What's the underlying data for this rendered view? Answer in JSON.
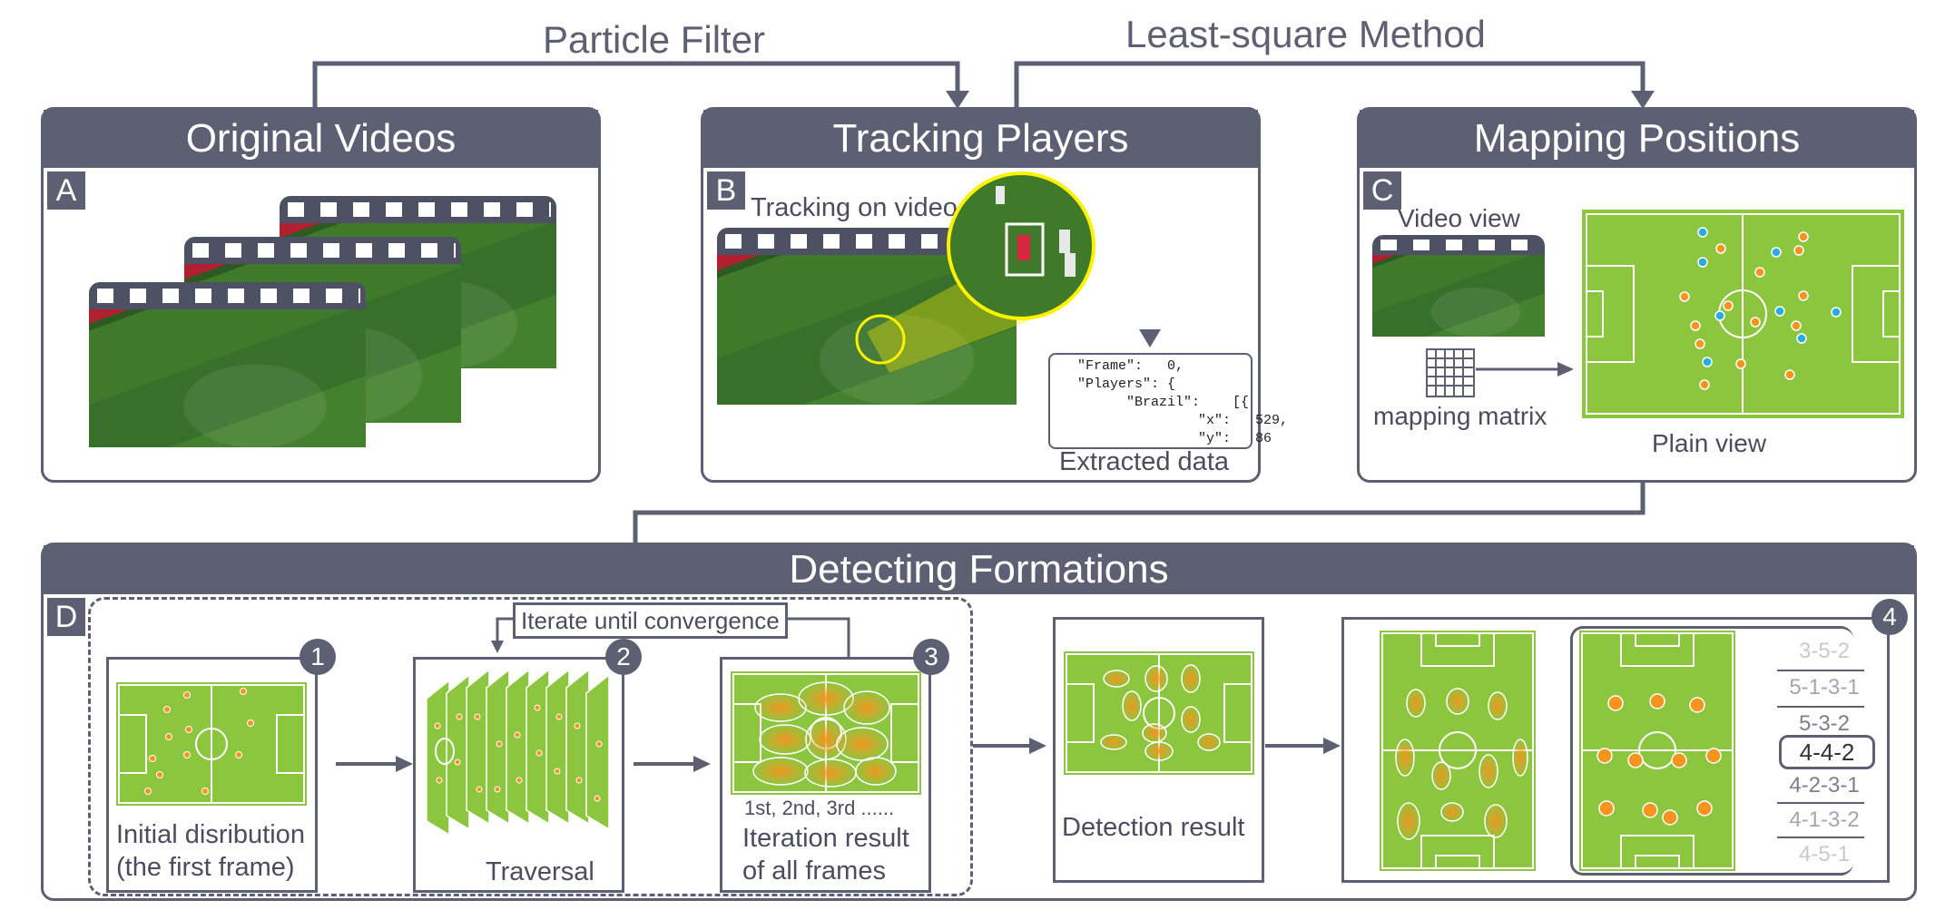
{
  "flow": {
    "particle_filter": "Particle Filter",
    "least_square": "Least-square Method"
  },
  "panels": {
    "a": {
      "title": "Original Videos",
      "tag": "A"
    },
    "b": {
      "title": "Tracking Players",
      "tag": "B",
      "tracking_label": "Tracking on video",
      "extracted_label": "Extracted data",
      "json_lines": [
        "\"Frame\":   0,",
        "\"Players\": {",
        "      \"Brazil\":    [{",
        "                 \"x\":   529,",
        "                 \"y\":   86"
      ]
    },
    "c": {
      "title": "Mapping Positions",
      "tag": "C",
      "video_view": "Video view",
      "mapping_matrix": "mapping matrix",
      "plain_view": "Plain view"
    },
    "d": {
      "title": "Detecting Formations",
      "tag": "D",
      "iterate_label": "Iterate until convergence",
      "step1_label_1": "Initial disribution",
      "step1_label_2": "(the first frame)",
      "step2_label": "Traversal",
      "step3_caption": "1st, 2nd, 3rd ......",
      "step3_label_1": "Iteration result",
      "step3_label_2": "of all frames",
      "detection_label": "Detection result",
      "badges": [
        "1",
        "2",
        "3",
        "4"
      ],
      "formations": [
        "3-5-2",
        "5-1-3-1",
        "5-3-2",
        "4-4-2",
        "4-2-3-1",
        "4-1-3-2",
        "4-5-1"
      ]
    }
  },
  "colors": {
    "accent": "#5d6072",
    "pitch": "#8cc63f",
    "orange": "#f7941d",
    "blue": "#29abe2",
    "highlight": "#fff200"
  }
}
